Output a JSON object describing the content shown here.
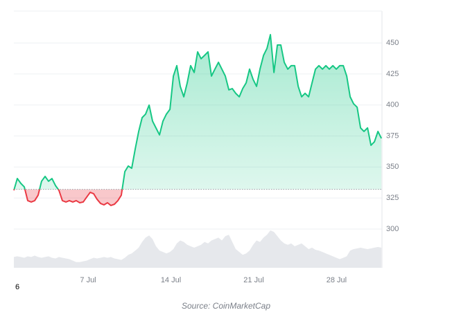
{
  "chart_data": {
    "type": "price",
    "source": "Source: CoinMarketCap",
    "corner_label": "6",
    "x": [
      0.73,
      1.02,
      1.32,
      1.61,
      1.9,
      2.2,
      2.49,
      2.78,
      3.07,
      3.37,
      3.66,
      3.95,
      4.25,
      4.54,
      4.83,
      5.13,
      5.42,
      5.71,
      6.0,
      6.3,
      6.59,
      6.88,
      7.18,
      7.47,
      7.76,
      8.06,
      8.35,
      8.64,
      8.93,
      9.23,
      9.52,
      9.81,
      10.11,
      10.4,
      10.69,
      10.99,
      11.28,
      11.57,
      11.86,
      12.16,
      12.45,
      12.74,
      13.04,
      13.33,
      13.62,
      13.92,
      14.21,
      14.5,
      14.79,
      15.09,
      15.38,
      15.67,
      15.97,
      16.26,
      16.55,
      16.85,
      17.14,
      17.43,
      17.72,
      18.02,
      18.31,
      18.6,
      18.9,
      19.19,
      19.48,
      19.78,
      20.07,
      20.36,
      20.65,
      20.95,
      21.24,
      21.53,
      21.83,
      22.12,
      22.41,
      22.71,
      23.0,
      23.29,
      23.58,
      23.88,
      24.17,
      24.46,
      24.76,
      25.05,
      25.34,
      25.64,
      25.93,
      26.22,
      26.51,
      26.81,
      27.1,
      27.39,
      27.69,
      27.98,
      28.27,
      28.57,
      28.86,
      29.15,
      29.44,
      29.74,
      30.03,
      30.32,
      30.62,
      30.91,
      31.2,
      31.5,
      31.79
    ],
    "values": [
      331.2,
      340.7,
      336.8,
      334,
      322.9,
      321.8,
      322.9,
      327.3,
      338.5,
      342.4,
      338.5,
      340.7,
      335,
      331.2,
      322.9,
      321.8,
      322.9,
      321.8,
      322.9,
      321.2,
      321.8,
      325.7,
      329.6,
      328.5,
      324,
      320.6,
      319.5,
      321.2,
      319,
      320,
      322.9,
      327.3,
      346.3,
      350.8,
      349,
      364.7,
      378.7,
      389.8,
      392.6,
      399.9,
      387,
      381.5,
      375.9,
      387,
      392.6,
      396.5,
      423.3,
      431.7,
      415,
      406.6,
      417.8,
      431.7,
      426.2,
      442.8,
      437.3,
      440,
      442.8,
      423.3,
      428.9,
      434.4,
      428.9,
      423.3,
      412.2,
      413.2,
      409.4,
      406.6,
      413.2,
      417.8,
      428.9,
      420.6,
      415,
      428.9,
      440,
      445.6,
      456.7,
      426.2,
      448.4,
      448.4,
      434.4,
      428.9,
      431.7,
      431.7,
      415,
      406.6,
      409.4,
      406.6,
      417.8,
      428.9,
      431.7,
      428.9,
      431.7,
      428.9,
      431.7,
      428.9,
      431.7,
      431.7,
      423.3,
      406.6,
      401,
      398.2,
      381.5,
      378.7,
      381.5,
      367.5,
      370.3,
      378.7,
      373.1
    ],
    "volume": [
      15,
      16,
      15,
      14,
      16,
      15,
      17,
      15,
      14,
      15,
      16,
      14,
      13,
      15,
      14,
      13,
      12,
      10,
      8,
      8,
      9,
      10,
      12,
      14,
      13,
      14,
      15,
      14,
      15,
      13,
      12,
      11,
      14,
      18,
      20,
      24,
      28,
      36,
      42,
      45,
      40,
      30,
      24,
      22,
      20,
      22,
      26,
      34,
      38,
      36,
      32,
      30,
      28,
      30,
      32,
      36,
      34,
      38,
      40,
      42,
      38,
      44,
      46,
      36,
      26,
      22,
      18,
      20,
      24,
      32,
      38,
      36,
      42,
      46,
      52,
      50,
      44,
      38,
      34,
      32,
      34,
      30,
      32,
      34,
      30,
      26,
      28,
      25,
      24,
      22,
      20,
      18,
      16,
      14,
      12,
      14,
      16,
      24,
      26,
      27,
      28,
      27,
      26,
      27,
      28,
      29,
      28
    ],
    "baseline": 332,
    "up_color": "#16c784",
    "down_color": "#ea3943",
    "volume_color": "#e6e8ec",
    "xlim": [
      0.73,
      31.84
    ],
    "xticks": [
      {
        "value": 7,
        "label": "7 Jul"
      },
      {
        "value": 14,
        "label": "14 Jul"
      },
      {
        "value": 21,
        "label": "21 Jul"
      },
      {
        "value": 28,
        "label": "28 Jul"
      }
    ],
    "ylim": [
      268.75,
      475.7
    ],
    "yticks": [
      300,
      325,
      350,
      375,
      400,
      425,
      450
    ],
    "grid": true
  }
}
